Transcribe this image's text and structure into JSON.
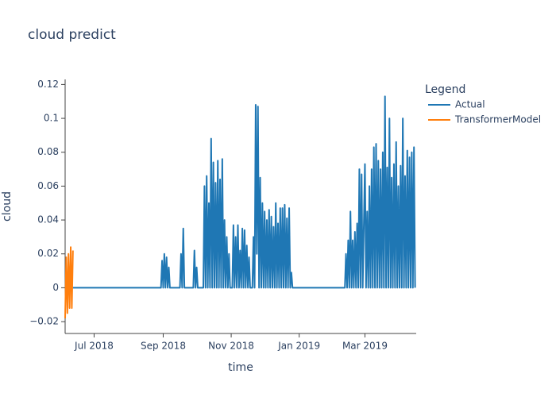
{
  "chart_data": {
    "type": "line",
    "title": "cloud predict",
    "x_label": "time",
    "y_label": "cloud",
    "legend_title": "Legend",
    "legend_position": "right",
    "grid": false,
    "xlim": [
      "2018-06-05",
      "2019-04-16"
    ],
    "xticks": [
      {
        "value": "2018-07-01",
        "label": "Jul 2018"
      },
      {
        "value": "2018-09-01",
        "label": "Sep 2018"
      },
      {
        "value": "2018-11-01",
        "label": "Nov 2018"
      },
      {
        "value": "2019-01-01",
        "label": "Jan 2019"
      },
      {
        "value": "2019-03-01",
        "label": "Mar 2019"
      }
    ],
    "ylim": [
      -0.027,
      0.123
    ],
    "yticks": [
      {
        "value": -0.02,
        "label": "−0.02"
      },
      0,
      0.02,
      0.04,
      0.06,
      0.08,
      0.1,
      0.12
    ],
    "series": [
      {
        "name": "Actual",
        "color": "#1f77b4",
        "x": [
          "2018-06-12",
          "2018-08-30",
          "2018-08-31",
          "2018-09-01",
          "2018-09-02",
          "2018-09-03",
          "2018-09-04",
          "2018-09-05",
          "2018-09-06",
          "2018-09-07",
          "2018-09-16",
          "2018-09-17",
          "2018-09-18",
          "2018-09-19",
          "2018-09-20",
          "2018-09-28",
          "2018-09-29",
          "2018-09-30",
          "2018-10-01",
          "2018-10-02",
          "2018-10-07",
          "2018-10-08",
          "2018-10-09",
          "2018-10-10",
          "2018-10-11",
          "2018-10-12",
          "2018-10-13",
          "2018-10-14",
          "2018-10-15",
          "2018-10-16",
          "2018-10-17",
          "2018-10-18",
          "2018-10-19",
          "2018-10-20",
          "2018-10-21",
          "2018-10-22",
          "2018-10-23",
          "2018-10-24",
          "2018-10-25",
          "2018-10-26",
          "2018-10-27",
          "2018-10-28",
          "2018-10-29",
          "2018-10-30",
          "2018-10-31",
          "2018-11-01",
          "2018-11-02",
          "2018-11-03",
          "2018-11-04",
          "2018-11-05",
          "2018-11-06",
          "2018-11-07",
          "2018-11-08",
          "2018-11-09",
          "2018-11-10",
          "2018-11-11",
          "2018-11-12",
          "2018-11-13",
          "2018-11-14",
          "2018-11-15",
          "2018-11-16",
          "2018-11-17",
          "2018-11-18",
          "2018-11-19",
          "2018-11-20",
          "2018-11-21",
          "2018-11-22",
          "2018-11-23",
          "2018-11-24",
          "2018-11-25",
          "2018-11-26",
          "2018-11-27",
          "2018-11-28",
          "2018-11-29",
          "2018-11-30",
          "2018-12-01",
          "2018-12-02",
          "2018-12-03",
          "2018-12-04",
          "2018-12-05",
          "2018-12-06",
          "2018-12-07",
          "2018-12-08",
          "2018-12-09",
          "2018-12-10",
          "2018-12-11",
          "2018-12-12",
          "2018-12-13",
          "2018-12-14",
          "2018-12-15",
          "2018-12-16",
          "2018-12-17",
          "2018-12-18",
          "2018-12-19",
          "2018-12-20",
          "2018-12-21",
          "2018-12-22",
          "2018-12-23",
          "2018-12-24",
          "2018-12-25",
          "2018-12-26",
          "2019-02-11",
          "2019-02-12",
          "2019-02-13",
          "2019-02-14",
          "2019-02-15",
          "2019-02-16",
          "2019-02-17",
          "2019-02-18",
          "2019-02-19",
          "2019-02-20",
          "2019-02-21",
          "2019-02-22",
          "2019-02-23",
          "2019-02-24",
          "2019-02-25",
          "2019-02-26",
          "2019-02-27",
          "2019-03-01",
          "2019-03-02",
          "2019-03-03",
          "2019-03-04",
          "2019-03-05",
          "2019-03-06",
          "2019-03-07",
          "2019-03-08",
          "2019-03-09",
          "2019-03-10",
          "2019-03-11",
          "2019-03-12",
          "2019-03-13",
          "2019-03-14",
          "2019-03-15",
          "2019-03-16",
          "2019-03-17",
          "2019-03-18",
          "2019-03-19",
          "2019-03-20",
          "2019-03-21",
          "2019-03-22",
          "2019-03-23",
          "2019-03-24",
          "2019-03-25",
          "2019-03-26",
          "2019-03-27",
          "2019-03-28",
          "2019-03-29",
          "2019-03-30",
          "2019-03-31",
          "2019-04-01",
          "2019-04-02",
          "2019-04-03",
          "2019-04-04",
          "2019-04-05",
          "2019-04-06",
          "2019-04-07",
          "2019-04-08",
          "2019-04-09",
          "2019-04-10",
          "2019-04-11",
          "2019-04-12",
          "2019-04-13",
          "2019-04-14",
          "2019-04-15"
        ],
        "values": [
          0,
          0,
          0.016,
          0,
          0.02,
          0,
          0.018,
          0,
          0.012,
          0,
          0,
          0.02,
          0,
          0.035,
          0,
          0,
          0.022,
          0,
          0.012,
          0,
          0,
          0.06,
          0,
          0.066,
          0,
          0.05,
          0,
          0.088,
          0,
          0.074,
          0,
          0.062,
          0,
          0.075,
          0,
          0.064,
          0,
          0.076,
          0,
          0.04,
          0,
          0.03,
          0,
          0.02,
          0,
          0,
          0,
          0.037,
          0,
          0.03,
          0,
          0.037,
          0,
          0.022,
          0,
          0.035,
          0,
          0.034,
          0,
          0.025,
          0,
          0.018,
          0,
          0,
          0,
          0.03,
          0,
          0.108,
          0.02,
          0.107,
          0,
          0.065,
          0,
          0.05,
          0,
          0.045,
          0,
          0.04,
          0,
          0.046,
          0,
          0.042,
          0,
          0.036,
          0,
          0.05,
          0,
          0.038,
          0,
          0.047,
          0,
          0.047,
          0,
          0.049,
          0,
          0.041,
          0,
          0.047,
          0,
          0.009,
          0,
          0,
          0.02,
          0,
          0.028,
          0,
          0.045,
          0,
          0.028,
          0,
          0.033,
          0,
          0.038,
          0,
          0.07,
          0,
          0.067,
          0,
          0.073,
          0,
          0.045,
          0,
          0.06,
          0,
          0.07,
          0,
          0.083,
          0,
          0.085,
          0,
          0.075,
          0,
          0.07,
          0,
          0.08,
          0,
          0.113,
          0,
          0.071,
          0,
          0.1,
          0,
          0.065,
          0,
          0.073,
          0,
          0.086,
          0,
          0.06,
          0,
          0.072,
          0,
          0.1,
          0,
          0.066,
          0,
          0.081,
          0,
          0.077,
          0,
          0.08,
          0,
          0.083,
          0
        ]
      },
      {
        "name": "TransformerModel",
        "color": "#ff7f0e",
        "x": [
          "2018-06-05",
          "2018-06-06",
          "2018-06-07",
          "2018-06-08",
          "2018-06-09",
          "2018-06-10",
          "2018-06-11",
          "2018-06-12"
        ],
        "values": [
          -0.018,
          0.018,
          -0.015,
          0.02,
          -0.012,
          0.024,
          -0.012,
          0.022
        ]
      }
    ]
  }
}
